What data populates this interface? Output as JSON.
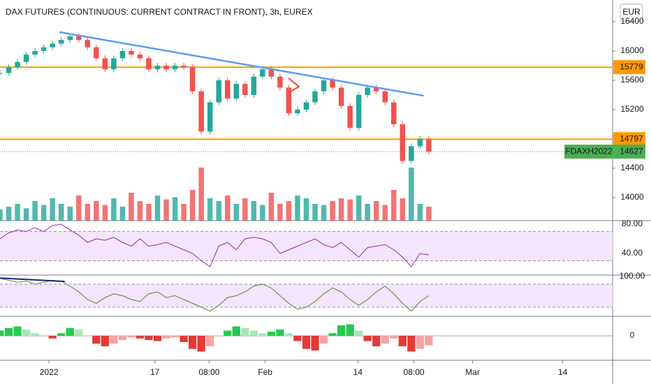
{
  "chart_data": {
    "type": "candlestick",
    "title": "DAX FUTURES (CONTINUOUS: CURRENT CONTRACT IN FRONT), 3h, EUREX",
    "currency": "EUR",
    "xlim": [
      0,
      70
    ],
    "xticks": [
      {
        "value": 5.6,
        "label": "2022"
      },
      {
        "value": 17.7,
        "label": "17"
      },
      {
        "value": 23.9,
        "label": "08:00"
      },
      {
        "value": 30.3,
        "label": "Feb"
      },
      {
        "value": 40.9,
        "label": "14"
      },
      {
        "value": 47.3,
        "label": "08:00"
      },
      {
        "value": 54,
        "label": "Mar"
      },
      {
        "value": 64.3,
        "label": "14"
      }
    ],
    "ylim": [
      13686,
      16695
    ],
    "yticks": [
      14000,
      14400,
      15200,
      15600,
      16000,
      16400
    ],
    "color_up": "#26a69a",
    "color_down": "#ef5350",
    "closes": [
      15700,
      15780,
      15850,
      15950,
      16000,
      16050,
      16100,
      16150,
      16200,
      16150,
      16050,
      15900,
      15750,
      15900,
      16000,
      15950,
      15900,
      15750,
      15800,
      15750,
      15800,
      15780,
      15450,
      14900,
      15300,
      15600,
      15350,
      15550,
      15400,
      15650,
      15750,
      15650,
      15500,
      15150,
      15200,
      15300,
      15450,
      15600,
      15500,
      15250,
      14950,
      15400,
      15500,
      15450,
      15300,
      15000,
      14500,
      14700,
      14800,
      14627
    ],
    "levels": [
      15779,
      14797
    ],
    "level_color": "#ff9800",
    "last": {
      "symbol": "FDAXH2022",
      "value": 14627,
      "color": "#4caf50"
    },
    "trendline": {
      "x": [
        6.8,
        48.4
      ],
      "values": [
        16257,
        15390
      ],
      "color": "#5b9cf0"
    },
    "volume": [
      20,
      25,
      30,
      22,
      35,
      28,
      40,
      30,
      25,
      45,
      30,
      35,
      28,
      40,
      25,
      50,
      35,
      30,
      45,
      38,
      42,
      30,
      55,
      95,
      40,
      35,
      45,
      30,
      40,
      35,
      28,
      50,
      30,
      35,
      45,
      40,
      30,
      28,
      35,
      40,
      38,
      45,
      30,
      35,
      28,
      55,
      40,
      95,
      30,
      25
    ],
    "rsi": {
      "ylim": [
        11.4,
        82.9
      ],
      "yticks": [
        {
          "value": 80,
          "label": "80.00"
        },
        {
          "value": 40,
          "label": "40.00"
        }
      ],
      "band": [
        30,
        70
      ],
      "color": "#9c27b0",
      "values": [
        60,
        68,
        72,
        70,
        75,
        70,
        78,
        80,
        72,
        65,
        55,
        60,
        58,
        62,
        55,
        50,
        60,
        50,
        52,
        55,
        50,
        45,
        40,
        30,
        22,
        50,
        55,
        45,
        60,
        62,
        60,
        55,
        40,
        45,
        50,
        55,
        60,
        52,
        48,
        55,
        45,
        35,
        48,
        50,
        52,
        45,
        35,
        22,
        40,
        38
      ]
    },
    "stoch": {
      "ylim": [
        0,
        100
      ],
      "yticks": [
        {
          "value": 100,
          "label": "100.00"
        }
      ],
      "band": [
        20,
        80
      ],
      "color": "#558b2f",
      "values": [
        95,
        90,
        85,
        88,
        80,
        85,
        90,
        88,
        75,
        60,
        40,
        30,
        45,
        55,
        50,
        40,
        35,
        55,
        60,
        45,
        50,
        40,
        30,
        20,
        10,
        25,
        45,
        50,
        60,
        75,
        80,
        70,
        50,
        30,
        15,
        20,
        35,
        55,
        70,
        60,
        40,
        25,
        40,
        60,
        75,
        55,
        30,
        10,
        35,
        50
      ],
      "trendline": {
        "x": [
          0,
          7.4
        ],
        "values": [
          96,
          87
        ],
        "color": "#1a237e"
      }
    },
    "histogram": {
      "ylim": [
        -40,
        40
      ],
      "yticks": [
        0
      ],
      "values": [
        10,
        15,
        18,
        12,
        5,
        0,
        -5,
        5,
        15,
        12,
        0,
        -15,
        -20,
        -15,
        -8,
        -3,
        -5,
        -8,
        -10,
        -5,
        -3,
        -12,
        -25,
        -30,
        -20,
        0,
        10,
        18,
        15,
        10,
        5,
        8,
        12,
        5,
        -10,
        -25,
        -28,
        -15,
        5,
        20,
        22,
        10,
        -10,
        -20,
        -15,
        -5,
        -20,
        -30,
        -25,
        -18
      ]
    }
  }
}
